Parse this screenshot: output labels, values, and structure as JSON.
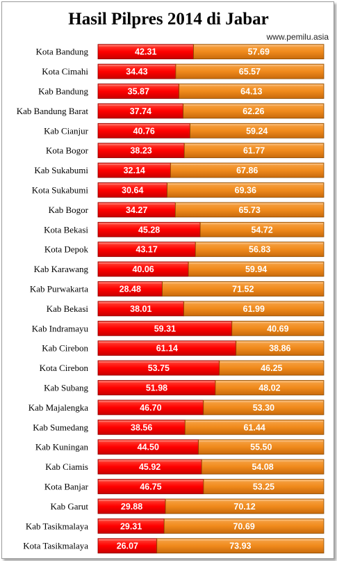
{
  "title": "Hasil Pilpres 2014 di Jabar",
  "source": "www.pemilu.asia",
  "colors": {
    "series_a": "#ff0000",
    "series_b": "#f08a1c"
  },
  "chart_data": {
    "type": "bar",
    "orientation": "horizontal",
    "stacked": true,
    "title": "Hasil Pilpres 2014 di Jabar",
    "xlim": [
      0,
      100
    ],
    "categories": [
      "Kota Bandung",
      "Kota Cimahi",
      "Kab Bandung",
      "Kab Bandung  Barat",
      "Kab Cianjur",
      "Kota Bogor",
      "Kab Sukabumi",
      "Kota Sukabumi",
      "Kab Bogor",
      "Kota Bekasi",
      "Kota Depok",
      "Kab Karawang",
      "Kab Purwakarta",
      "Kab Bekasi",
      "Kab Indramayu",
      "Kab Cirebon",
      "Kota Cirebon",
      "Kab Subang",
      "Kab Majalengka",
      "Kab Sumedang",
      "Kab Kuningan",
      "Kab Ciamis",
      "Kota Banjar",
      "Kab Garut",
      "Kab Tasikmalaya",
      "Kota Tasikmalaya"
    ],
    "series": [
      {
        "values": [
          42.31,
          34.43,
          35.87,
          37.74,
          40.76,
          38.23,
          32.14,
          30.64,
          34.27,
          45.28,
          43.17,
          40.06,
          28.48,
          38.01,
          59.31,
          61.14,
          53.75,
          51.98,
          46.7,
          38.56,
          44.5,
          45.92,
          46.75,
          29.88,
          29.31,
          26.07
        ],
        "labels": [
          "42.31",
          "34.43",
          "35.87",
          "37.74",
          "40.76",
          "38.23",
          "32.14",
          "30.64",
          "34.27",
          "45.28",
          "43.17",
          "40.06",
          "28.48",
          "38.01",
          "59.31",
          "61.14",
          "53.75",
          "51.98",
          "46.70",
          "38.56",
          "44.50",
          "45.92",
          "46.75",
          "29.88",
          "29.31",
          "26.07"
        ]
      },
      {
        "values": [
          57.69,
          65.57,
          64.13,
          62.26,
          59.24,
          61.77,
          67.86,
          69.36,
          65.73,
          54.72,
          56.83,
          59.94,
          71.52,
          61.99,
          40.69,
          38.86,
          46.25,
          48.02,
          53.3,
          61.44,
          55.5,
          54.08,
          53.25,
          70.12,
          70.69,
          73.93
        ],
        "labels": [
          "57.69",
          "65.57",
          "64.13",
          "62.26",
          "59.24",
          "61.77",
          "67.86",
          "69.36",
          "65.73",
          "54.72",
          "56.83",
          "59.94",
          "71.52",
          "61.99",
          "40.69",
          "38.86",
          "46.25",
          "48.02",
          "53.30",
          "61.44",
          "55.50",
          "54.08",
          "53.25",
          "70.12",
          "70.69",
          "73.93"
        ]
      }
    ]
  }
}
